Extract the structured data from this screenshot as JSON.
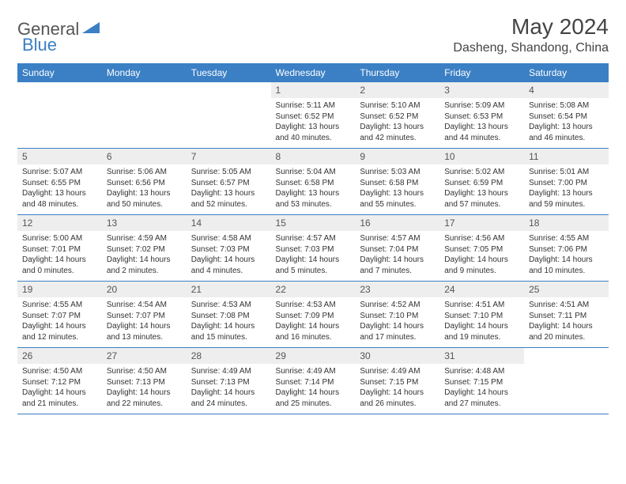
{
  "logo": {
    "part1": "General",
    "part2": "Blue"
  },
  "title": "May 2024",
  "location": "Dasheng, Shandong, China",
  "colors": {
    "header_bg": "#3b7fc4",
    "header_text": "#ffffff",
    "daynum_bg": "#eeeeee",
    "border": "#3b7fc4",
    "logo_accent": "#3b7fc4",
    "logo_gray": "#555555"
  },
  "weekdays": [
    "Sunday",
    "Monday",
    "Tuesday",
    "Wednesday",
    "Thursday",
    "Friday",
    "Saturday"
  ],
  "weeks": [
    [
      null,
      null,
      null,
      {
        "n": "1",
        "sr": "5:11 AM",
        "ss": "6:52 PM",
        "dl": "13 hours and 40 minutes."
      },
      {
        "n": "2",
        "sr": "5:10 AM",
        "ss": "6:52 PM",
        "dl": "13 hours and 42 minutes."
      },
      {
        "n": "3",
        "sr": "5:09 AM",
        "ss": "6:53 PM",
        "dl": "13 hours and 44 minutes."
      },
      {
        "n": "4",
        "sr": "5:08 AM",
        "ss": "6:54 PM",
        "dl": "13 hours and 46 minutes."
      }
    ],
    [
      {
        "n": "5",
        "sr": "5:07 AM",
        "ss": "6:55 PM",
        "dl": "13 hours and 48 minutes."
      },
      {
        "n": "6",
        "sr": "5:06 AM",
        "ss": "6:56 PM",
        "dl": "13 hours and 50 minutes."
      },
      {
        "n": "7",
        "sr": "5:05 AM",
        "ss": "6:57 PM",
        "dl": "13 hours and 52 minutes."
      },
      {
        "n": "8",
        "sr": "5:04 AM",
        "ss": "6:58 PM",
        "dl": "13 hours and 53 minutes."
      },
      {
        "n": "9",
        "sr": "5:03 AM",
        "ss": "6:58 PM",
        "dl": "13 hours and 55 minutes."
      },
      {
        "n": "10",
        "sr": "5:02 AM",
        "ss": "6:59 PM",
        "dl": "13 hours and 57 minutes."
      },
      {
        "n": "11",
        "sr": "5:01 AM",
        "ss": "7:00 PM",
        "dl": "13 hours and 59 minutes."
      }
    ],
    [
      {
        "n": "12",
        "sr": "5:00 AM",
        "ss": "7:01 PM",
        "dl": "14 hours and 0 minutes."
      },
      {
        "n": "13",
        "sr": "4:59 AM",
        "ss": "7:02 PM",
        "dl": "14 hours and 2 minutes."
      },
      {
        "n": "14",
        "sr": "4:58 AM",
        "ss": "7:03 PM",
        "dl": "14 hours and 4 minutes."
      },
      {
        "n": "15",
        "sr": "4:57 AM",
        "ss": "7:03 PM",
        "dl": "14 hours and 5 minutes."
      },
      {
        "n": "16",
        "sr": "4:57 AM",
        "ss": "7:04 PM",
        "dl": "14 hours and 7 minutes."
      },
      {
        "n": "17",
        "sr": "4:56 AM",
        "ss": "7:05 PM",
        "dl": "14 hours and 9 minutes."
      },
      {
        "n": "18",
        "sr": "4:55 AM",
        "ss": "7:06 PM",
        "dl": "14 hours and 10 minutes."
      }
    ],
    [
      {
        "n": "19",
        "sr": "4:55 AM",
        "ss": "7:07 PM",
        "dl": "14 hours and 12 minutes."
      },
      {
        "n": "20",
        "sr": "4:54 AM",
        "ss": "7:07 PM",
        "dl": "14 hours and 13 minutes."
      },
      {
        "n": "21",
        "sr": "4:53 AM",
        "ss": "7:08 PM",
        "dl": "14 hours and 15 minutes."
      },
      {
        "n": "22",
        "sr": "4:53 AM",
        "ss": "7:09 PM",
        "dl": "14 hours and 16 minutes."
      },
      {
        "n": "23",
        "sr": "4:52 AM",
        "ss": "7:10 PM",
        "dl": "14 hours and 17 minutes."
      },
      {
        "n": "24",
        "sr": "4:51 AM",
        "ss": "7:10 PM",
        "dl": "14 hours and 19 minutes."
      },
      {
        "n": "25",
        "sr": "4:51 AM",
        "ss": "7:11 PM",
        "dl": "14 hours and 20 minutes."
      }
    ],
    [
      {
        "n": "26",
        "sr": "4:50 AM",
        "ss": "7:12 PM",
        "dl": "14 hours and 21 minutes."
      },
      {
        "n": "27",
        "sr": "4:50 AM",
        "ss": "7:13 PM",
        "dl": "14 hours and 22 minutes."
      },
      {
        "n": "28",
        "sr": "4:49 AM",
        "ss": "7:13 PM",
        "dl": "14 hours and 24 minutes."
      },
      {
        "n": "29",
        "sr": "4:49 AM",
        "ss": "7:14 PM",
        "dl": "14 hours and 25 minutes."
      },
      {
        "n": "30",
        "sr": "4:49 AM",
        "ss": "7:15 PM",
        "dl": "14 hours and 26 minutes."
      },
      {
        "n": "31",
        "sr": "4:48 AM",
        "ss": "7:15 PM",
        "dl": "14 hours and 27 minutes."
      },
      null
    ]
  ],
  "labels": {
    "sunrise": "Sunrise:",
    "sunset": "Sunset:",
    "daylight": "Daylight:"
  }
}
